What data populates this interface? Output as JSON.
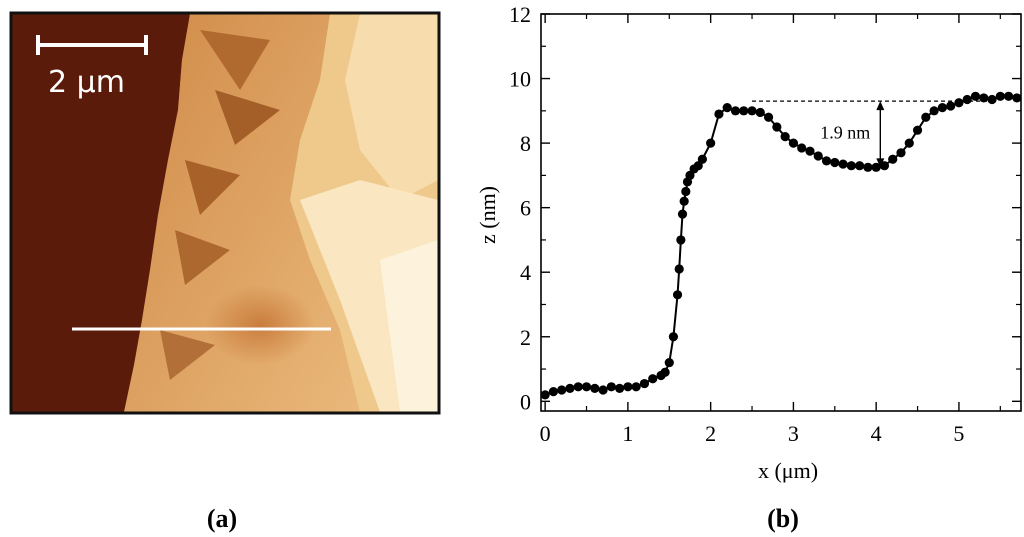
{
  "panels": {
    "a_label": "(a)",
    "b_label": "(b)"
  },
  "afm_image": {
    "scale_bar_label": "2 μm",
    "colors": {
      "dark": "#5a1a0a",
      "mid": "#b8652a",
      "light": "#f3d9a4",
      "lightest": "#fdf3dc",
      "profile_line": "#ffffff",
      "border": "#111111"
    }
  },
  "chart_data": {
    "type": "scatter",
    "xlabel": "x (μm)",
    "ylabel": "z (nm)",
    "xlim": [
      -0.05,
      5.75
    ],
    "ylim": [
      -0.3,
      12
    ],
    "x_ticks": [
      0,
      1,
      2,
      3,
      4,
      5
    ],
    "y_ticks": [
      0,
      2,
      4,
      6,
      8,
      10,
      12
    ],
    "grid": false,
    "series": [
      {
        "color": "#000000",
        "x": [
          0,
          0.1,
          0.2,
          0.3,
          0.4,
          0.5,
          0.6,
          0.7,
          0.8,
          0.9,
          1.0,
          1.1,
          1.2,
          1.3,
          1.4,
          1.45,
          1.5,
          1.55,
          1.6,
          1.62,
          1.64,
          1.66,
          1.68,
          1.7,
          1.72,
          1.75,
          1.8,
          1.85,
          1.9,
          2.0,
          2.1,
          2.2,
          2.3,
          2.4,
          2.5,
          2.6,
          2.7,
          2.8,
          2.9,
          3.0,
          3.1,
          3.2,
          3.3,
          3.4,
          3.5,
          3.6,
          3.7,
          3.8,
          3.9,
          4.0,
          4.1,
          4.2,
          4.3,
          4.4,
          4.5,
          4.6,
          4.7,
          4.8,
          4.9,
          5.0,
          5.1,
          5.2,
          5.3,
          5.4,
          5.5,
          5.6,
          5.7
        ],
        "y": [
          0.2,
          0.3,
          0.35,
          0.4,
          0.45,
          0.45,
          0.4,
          0.35,
          0.45,
          0.4,
          0.45,
          0.45,
          0.55,
          0.7,
          0.8,
          0.9,
          1.2,
          2.0,
          3.3,
          4.1,
          5.0,
          5.8,
          6.2,
          6.5,
          6.8,
          7.0,
          7.2,
          7.3,
          7.5,
          8.0,
          8.9,
          9.1,
          9.0,
          9.0,
          9.0,
          8.95,
          8.8,
          8.5,
          8.2,
          8.0,
          7.85,
          7.75,
          7.6,
          7.45,
          7.4,
          7.35,
          7.3,
          7.3,
          7.25,
          7.25,
          7.3,
          7.5,
          7.7,
          8.0,
          8.4,
          8.8,
          9.0,
          9.1,
          9.15,
          9.25,
          9.35,
          9.45,
          9.4,
          9.35,
          9.45,
          9.45,
          9.4
        ]
      }
    ],
    "annotation": {
      "label": "1.9 nm",
      "x": 4.05,
      "y_top": 9.3,
      "y_bottom": 7.25,
      "dashed_from_x": 2.5,
      "dashed_to_x": 5.45
    }
  }
}
